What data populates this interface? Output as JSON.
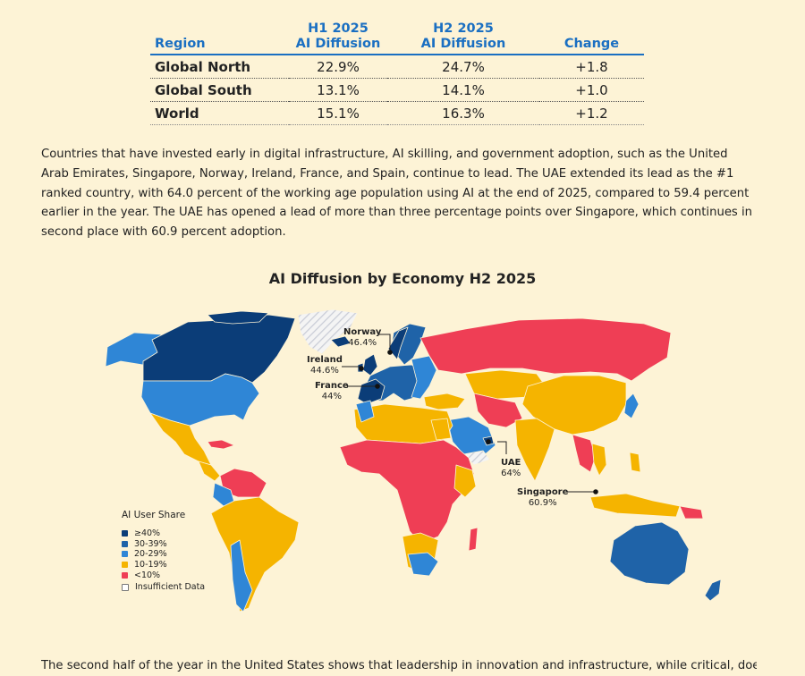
{
  "table": {
    "headers": {
      "region": "Region",
      "h1_line1": "H1 2025",
      "h1_line2": "AI Diffusion",
      "h2_line1": "H2 2025",
      "h2_line2": "AI Diffusion",
      "change": "Change"
    },
    "rows": [
      {
        "region": "Global North",
        "h1": "22.9%",
        "h2": "24.7%",
        "change": "+1.8"
      },
      {
        "region": "Global South",
        "h1": "13.1%",
        "h2": "14.1%",
        "change": "+1.0"
      },
      {
        "region": "World",
        "h1": "15.1%",
        "h2": "16.3%",
        "change": "+1.2"
      }
    ]
  },
  "paragraph1": "Countries that have invested early in digital infrastructure, AI skilling, and government adoption, such as the United Arab Emirates, Singapore, Norway, Ireland, France, and Spain, continue to lead. The UAE extended its lead as the #1 ranked country, with 64.0 percent of the working age population using AI at the end of 2025, compared to 59.4 percent earlier in the year. The UAE has opened a lead of more than three percentage points over Singapore, which continues in second place with 60.9 percent adoption.",
  "map": {
    "title": "AI Diffusion by Economy H2 2025",
    "legend_title": "AI User Share",
    "legend": [
      {
        "label": "≥40%",
        "color": "#0b3d78"
      },
      {
        "label": "30-39%",
        "color": "#1f63a8"
      },
      {
        "label": "20-29%",
        "color": "#2f86d6"
      },
      {
        "label": "10-19%",
        "color": "#f5b400"
      },
      {
        "label": "<10%",
        "color": "#ef3e55"
      },
      {
        "label": "Insufficient Data",
        "color": "#ffffff"
      }
    ],
    "callouts": [
      {
        "name": "Norway",
        "value": "46.4%"
      },
      {
        "name": "Ireland",
        "value": "44.6%"
      },
      {
        "name": "France",
        "value": "44%"
      },
      {
        "name": "UAE",
        "value": "64%"
      },
      {
        "name": "Singapore",
        "value": "60.9%"
      }
    ]
  },
  "paragraph2": "The second half of the year in the United States shows that leadership in innovation and infrastructure, while critical, does not"
}
